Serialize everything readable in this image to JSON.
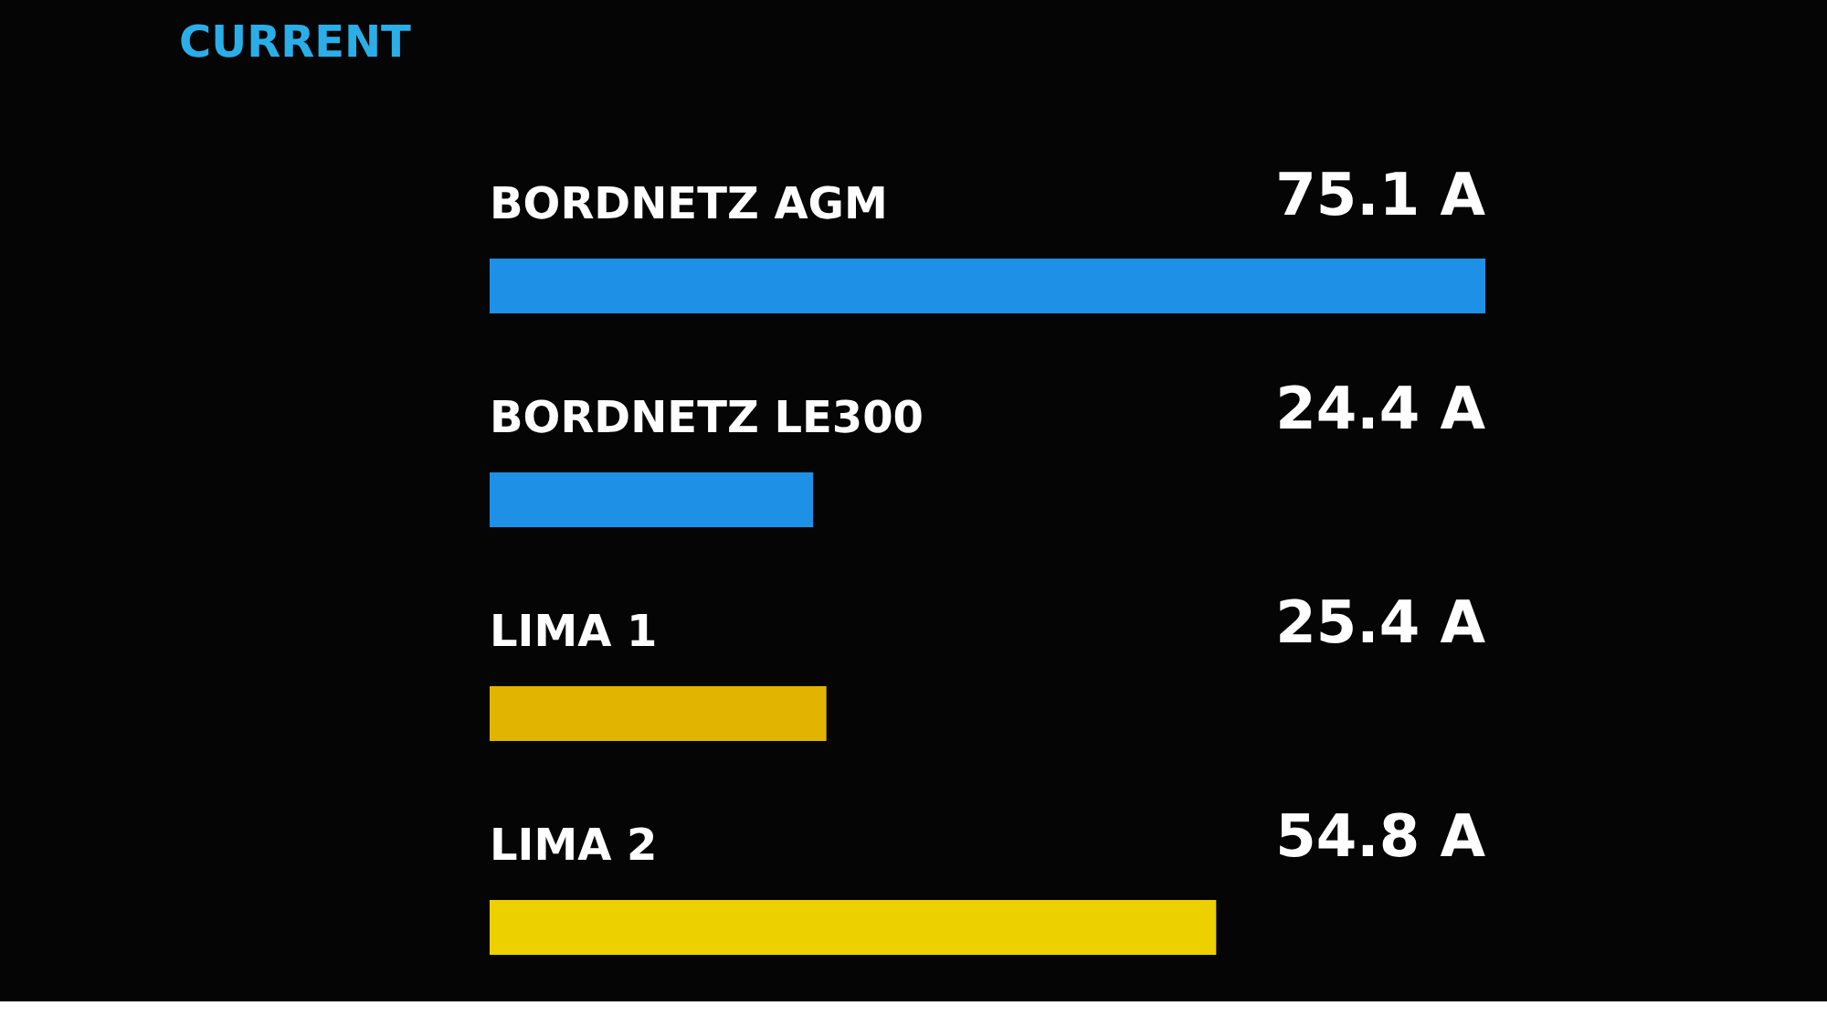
{
  "chart_data": {
    "type": "bar",
    "orientation": "horizontal",
    "title": "CURRENT",
    "categories": [
      "BORDNETZ AGM",
      "BORDNETZ LE300",
      "LIMA 1",
      "LIMA 2"
    ],
    "values": [
      75.1,
      24.4,
      25.4,
      54.8
    ],
    "colors": [
      "#1e90e6",
      "#1e90e6",
      "#e0b400",
      "#ecd000"
    ],
    "value_labels": [
      "75.1 A",
      "24.4 A",
      "25.4 A",
      "54.8 A"
    ]
  }
}
